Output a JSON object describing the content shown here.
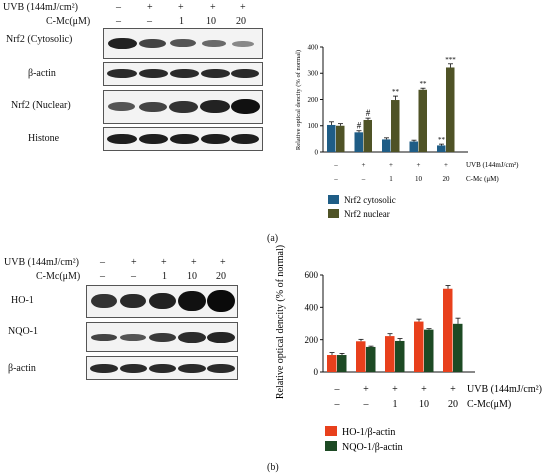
{
  "panel_a": {
    "header_treatment": "UVB (144mJ/cm²)",
    "header_compound": "C-Mc(μM)",
    "uvb_signs": [
      "–",
      "+",
      "+",
      "+",
      "+"
    ],
    "cmc_values": [
      "–",
      "–",
      "1",
      "10",
      "20"
    ],
    "blot_labels": [
      "Nrf2 (Cytosolic)",
      "β-actin",
      "Nrf2 (Nuclear)",
      "Histone"
    ],
    "caption": "(a)"
  },
  "panel_b": {
    "header_treatment": "UVB (144mJ/cm²)",
    "header_compound": "C-Mc(μM)",
    "uvb_signs": [
      "–",
      "+",
      "+",
      "+",
      "+"
    ],
    "cmc_values": [
      "–",
      "–",
      "1",
      "10",
      "20"
    ],
    "blot_labels": [
      "HO-1",
      "NQO-1",
      "β-actin"
    ],
    "caption": "(b)"
  },
  "colors": {
    "nrf2_cytosolic": "#1f5d86",
    "nrf2_nuclear": "#4f5326",
    "ho1": "#e8401c",
    "nqo1": "#1d4a24"
  },
  "chart_data": [
    {
      "type": "bar",
      "categories": [
        "1",
        "2",
        "3",
        "4",
        "5"
      ],
      "row_uvb": [
        "–",
        "+",
        "+",
        "+",
        "+"
      ],
      "row_cmc": [
        "–",
        "–",
        "1",
        "10",
        "20"
      ],
      "row_uvb_label": "UVB (144mJ/cm²)",
      "row_cmc_label": "C-Mc (μM)",
      "ylabel": "Relative optical dencity (% of normal)",
      "ylim": [
        0,
        400
      ],
      "yticks": [
        0,
        100,
        200,
        300,
        400
      ],
      "series": [
        {
          "name": "Nrf2 cytosolic",
          "values": [
            103,
            75,
            48,
            40,
            25
          ],
          "errors": [
            12,
            6,
            6,
            5,
            5
          ],
          "marks": [
            "",
            "#",
            "",
            "",
            "**"
          ]
        },
        {
          "name": "Nrf2 nuclear",
          "values": [
            100,
            122,
            198,
            237,
            322
          ],
          "errors": [
            8,
            7,
            15,
            6,
            14
          ],
          "marks": [
            "",
            "#",
            "**",
            "**",
            "***"
          ]
        }
      ]
    },
    {
      "type": "bar",
      "categories": [
        "1",
        "2",
        "3",
        "4",
        "5"
      ],
      "row_uvb": [
        "–",
        "+",
        "+",
        "+",
        "+"
      ],
      "row_cmc": [
        "–",
        "–",
        "1",
        "10",
        "20"
      ],
      "row_uvb_label": "UVB (144mJ/cm²)",
      "row_cmc_label": "C-Mc(μM)",
      "ylabel": "Relative optical dencity (% of normal)",
      "ylim": [
        0,
        600
      ],
      "yticks": [
        0,
        200,
        400,
        600
      ],
      "series": [
        {
          "name": "HO-1/β-actin",
          "values": [
            105,
            190,
            222,
            312,
            515
          ],
          "errors": [
            15,
            12,
            15,
            15,
            20
          ],
          "marks": [
            "",
            "",
            "",
            "",
            ""
          ]
        },
        {
          "name": "NQO-1/β-actin",
          "values": [
            105,
            155,
            192,
            262,
            298
          ],
          "errors": [
            10,
            5,
            15,
            6,
            35
          ],
          "marks": [
            "",
            "",
            "",
            "",
            ""
          ]
        }
      ]
    }
  ]
}
